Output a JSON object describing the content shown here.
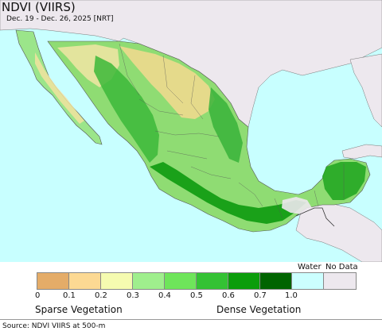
{
  "title": "NDVI (VIIRS)",
  "subtitle": "Dec. 19 - Dec. 26, 2025 [NRT]",
  "legend": {
    "water_label": "Water",
    "nodata_label": "No Data",
    "ticks": [
      "0",
      "0.1",
      "0.2",
      "0.3",
      "0.4",
      "0.5",
      "0.6",
      "0.7",
      "1.0"
    ],
    "colors": [
      "#e4ac68",
      "#fcd993",
      "#f5fbb0",
      "#9fef8d",
      "#6ee55a",
      "#34c234",
      "#0b9d0b",
      "#006400",
      "#ccffff",
      "#ede8ee"
    ],
    "sparse_label": "Sparse Vegetation",
    "dense_label": "Dense Vegetation"
  },
  "source": "Source: NDVI VIIRS at 500-m",
  "map_colors": {
    "ocean": "#c8ffff",
    "us_land": "#ede8ee",
    "state_border": "#555555"
  }
}
